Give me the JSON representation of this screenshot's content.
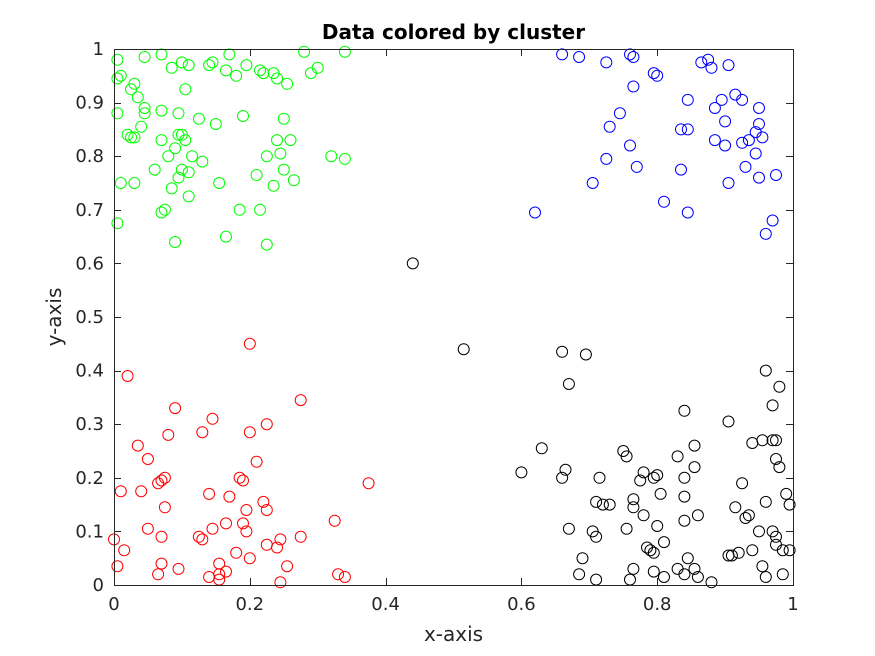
{
  "chart_data": {
    "type": "scatter",
    "title": "Data colored by cluster",
    "xlabel": "x-axis",
    "ylabel": "y-axis",
    "xlim": [
      0,
      1
    ],
    "ylim": [
      0,
      1
    ],
    "xticks": [
      "0",
      "0.2",
      "0.4",
      "0.6",
      "0.8",
      "1"
    ],
    "yticks": [
      "0",
      "0.1",
      "0.2",
      "0.3",
      "0.4",
      "0.5",
      "0.6",
      "0.7",
      "0.8",
      "0.9",
      "1"
    ],
    "grid": false,
    "legend": "none",
    "marker": "circle-open",
    "series": [
      {
        "color": "#00ff00",
        "points": [
          [
            0.005,
            0.98
          ],
          [
            0.01,
            0.95
          ],
          [
            0.005,
            0.945
          ],
          [
            0.025,
            0.925
          ],
          [
            0.03,
            0.935
          ],
          [
            0.035,
            0.91
          ],
          [
            0.045,
            0.89
          ],
          [
            0.005,
            0.88
          ],
          [
            0.02,
            0.84
          ],
          [
            0.025,
            0.835
          ],
          [
            0.03,
            0.835
          ],
          [
            0.04,
            0.855
          ],
          [
            0.045,
            0.88
          ],
          [
            0.01,
            0.75
          ],
          [
            0.03,
            0.75
          ],
          [
            0.005,
            0.675
          ],
          [
            0.045,
            0.985
          ],
          [
            0.07,
            0.99
          ],
          [
            0.085,
            0.965
          ],
          [
            0.1,
            0.975
          ],
          [
            0.11,
            0.97
          ],
          [
            0.105,
            0.925
          ],
          [
            0.07,
            0.885
          ],
          [
            0.095,
            0.88
          ],
          [
            0.07,
            0.83
          ],
          [
            0.08,
            0.8
          ],
          [
            0.09,
            0.815
          ],
          [
            0.095,
            0.84
          ],
          [
            0.1,
            0.84
          ],
          [
            0.105,
            0.83
          ],
          [
            0.115,
            0.8
          ],
          [
            0.06,
            0.775
          ],
          [
            0.1,
            0.775
          ],
          [
            0.11,
            0.77
          ],
          [
            0.095,
            0.76
          ],
          [
            0.085,
            0.74
          ],
          [
            0.11,
            0.725
          ],
          [
            0.075,
            0.7
          ],
          [
            0.07,
            0.695
          ],
          [
            0.09,
            0.64
          ],
          [
            0.14,
            0.97
          ],
          [
            0.145,
            0.975
          ],
          [
            0.165,
            0.96
          ],
          [
            0.17,
            0.99
          ],
          [
            0.18,
            0.95
          ],
          [
            0.195,
            0.97
          ],
          [
            0.215,
            0.96
          ],
          [
            0.22,
            0.955
          ],
          [
            0.235,
            0.955
          ],
          [
            0.24,
            0.945
          ],
          [
            0.255,
            0.935
          ],
          [
            0.28,
            0.995
          ],
          [
            0.29,
            0.955
          ],
          [
            0.3,
            0.965
          ],
          [
            0.34,
            0.995
          ],
          [
            0.125,
            0.87
          ],
          [
            0.15,
            0.86
          ],
          [
            0.19,
            0.875
          ],
          [
            0.25,
            0.87
          ],
          [
            0.26,
            0.83
          ],
          [
            0.24,
            0.83
          ],
          [
            0.225,
            0.8
          ],
          [
            0.245,
            0.805
          ],
          [
            0.32,
            0.8
          ],
          [
            0.34,
            0.795
          ],
          [
            0.13,
            0.79
          ],
          [
            0.155,
            0.75
          ],
          [
            0.21,
            0.765
          ],
          [
            0.25,
            0.775
          ],
          [
            0.265,
            0.755
          ],
          [
            0.235,
            0.745
          ],
          [
            0.185,
            0.7
          ],
          [
            0.215,
            0.7
          ],
          [
            0.165,
            0.65
          ],
          [
            0.225,
            0.635
          ]
        ]
      },
      {
        "color": "#0000ff",
        "points": [
          [
            0.66,
            0.99
          ],
          [
            0.685,
            0.985
          ],
          [
            0.76,
            0.99
          ],
          [
            0.765,
            0.985
          ],
          [
            0.725,
            0.975
          ],
          [
            0.8,
            0.95
          ],
          [
            0.795,
            0.955
          ],
          [
            0.865,
            0.975
          ],
          [
            0.875,
            0.98
          ],
          [
            0.88,
            0.965
          ],
          [
            0.905,
            0.97
          ],
          [
            0.765,
            0.93
          ],
          [
            0.845,
            0.905
          ],
          [
            0.895,
            0.905
          ],
          [
            0.915,
            0.915
          ],
          [
            0.925,
            0.905
          ],
          [
            0.885,
            0.89
          ],
          [
            0.95,
            0.89
          ],
          [
            0.745,
            0.88
          ],
          [
            0.73,
            0.855
          ],
          [
            0.835,
            0.85
          ],
          [
            0.845,
            0.85
          ],
          [
            0.9,
            0.865
          ],
          [
            0.95,
            0.86
          ],
          [
            0.945,
            0.845
          ],
          [
            0.955,
            0.835
          ],
          [
            0.935,
            0.83
          ],
          [
            0.925,
            0.825
          ],
          [
            0.885,
            0.83
          ],
          [
            0.9,
            0.82
          ],
          [
            0.76,
            0.82
          ],
          [
            0.725,
            0.795
          ],
          [
            0.77,
            0.78
          ],
          [
            0.835,
            0.775
          ],
          [
            0.93,
            0.78
          ],
          [
            0.945,
            0.805
          ],
          [
            0.95,
            0.76
          ],
          [
            0.975,
            0.765
          ],
          [
            0.705,
            0.75
          ],
          [
            0.905,
            0.75
          ],
          [
            0.81,
            0.715
          ],
          [
            0.845,
            0.695
          ],
          [
            0.97,
            0.68
          ],
          [
            0.96,
            0.655
          ],
          [
            0.62,
            0.695
          ]
        ]
      },
      {
        "color": "#ff0000",
        "points": [
          [
            0.2,
            0.45
          ],
          [
            0.02,
            0.39
          ],
          [
            0.275,
            0.345
          ],
          [
            0.09,
            0.33
          ],
          [
            0.145,
            0.31
          ],
          [
            0.225,
            0.3
          ],
          [
            0.08,
            0.28
          ],
          [
            0.13,
            0.285
          ],
          [
            0.2,
            0.285
          ],
          [
            0.035,
            0.26
          ],
          [
            0.05,
            0.235
          ],
          [
            0.21,
            0.23
          ],
          [
            0.075,
            0.2
          ],
          [
            0.07,
            0.195
          ],
          [
            0.065,
            0.19
          ],
          [
            0.185,
            0.2
          ],
          [
            0.19,
            0.195
          ],
          [
            0.375,
            0.19
          ],
          [
            0.04,
            0.175
          ],
          [
            0.01,
            0.175
          ],
          [
            0.14,
            0.17
          ],
          [
            0.17,
            0.165
          ],
          [
            0.22,
            0.155
          ],
          [
            0.225,
            0.14
          ],
          [
            0.075,
            0.145
          ],
          [
            0.195,
            0.14
          ],
          [
            0.05,
            0.105
          ],
          [
            0.07,
            0.09
          ],
          [
            0.125,
            0.09
          ],
          [
            0.13,
            0.085
          ],
          [
            0.145,
            0.105
          ],
          [
            0.165,
            0.115
          ],
          [
            0.19,
            0.115
          ],
          [
            0.195,
            0.1
          ],
          [
            0.245,
            0.085
          ],
          [
            0.275,
            0.09
          ],
          [
            0.325,
            0.12
          ],
          [
            0.0,
            0.085
          ],
          [
            0.015,
            0.065
          ],
          [
            0.005,
            0.035
          ],
          [
            0.07,
            0.04
          ],
          [
            0.065,
            0.02
          ],
          [
            0.095,
            0.03
          ],
          [
            0.155,
            0.04
          ],
          [
            0.18,
            0.06
          ],
          [
            0.2,
            0.05
          ],
          [
            0.225,
            0.075
          ],
          [
            0.24,
            0.07
          ],
          [
            0.255,
            0.035
          ],
          [
            0.14,
            0.015
          ],
          [
            0.155,
            0.01
          ],
          [
            0.155,
            0.02
          ],
          [
            0.165,
            0.025
          ],
          [
            0.245,
            0.005
          ],
          [
            0.33,
            0.02
          ],
          [
            0.34,
            0.015
          ]
        ]
      },
      {
        "color": "#000000",
        "points": [
          [
            0.44,
            0.6
          ],
          [
            0.515,
            0.44
          ],
          [
            0.66,
            0.435
          ],
          [
            0.695,
            0.43
          ],
          [
            0.67,
            0.375
          ],
          [
            0.96,
            0.4
          ],
          [
            0.98,
            0.37
          ],
          [
            0.97,
            0.335
          ],
          [
            0.84,
            0.325
          ],
          [
            0.905,
            0.305
          ],
          [
            0.63,
            0.255
          ],
          [
            0.855,
            0.26
          ],
          [
            0.94,
            0.265
          ],
          [
            0.955,
            0.27
          ],
          [
            0.97,
            0.27
          ],
          [
            0.975,
            0.27
          ],
          [
            0.75,
            0.25
          ],
          [
            0.755,
            0.24
          ],
          [
            0.83,
            0.24
          ],
          [
            0.975,
            0.235
          ],
          [
            0.98,
            0.22
          ],
          [
            0.6,
            0.21
          ],
          [
            0.665,
            0.215
          ],
          [
            0.66,
            0.2
          ],
          [
            0.715,
            0.2
          ],
          [
            0.78,
            0.21
          ],
          [
            0.775,
            0.195
          ],
          [
            0.795,
            0.2
          ],
          [
            0.8,
            0.205
          ],
          [
            0.84,
            0.2
          ],
          [
            0.855,
            0.22
          ],
          [
            0.925,
            0.19
          ],
          [
            0.765,
            0.16
          ],
          [
            0.805,
            0.17
          ],
          [
            0.84,
            0.165
          ],
          [
            0.99,
            0.17
          ],
          [
            0.71,
            0.155
          ],
          [
            0.72,
            0.15
          ],
          [
            0.73,
            0.15
          ],
          [
            0.765,
            0.145
          ],
          [
            0.915,
            0.145
          ],
          [
            0.935,
            0.13
          ],
          [
            0.95,
            0.1
          ],
          [
            0.96,
            0.155
          ],
          [
            0.995,
            0.15
          ],
          [
            0.67,
            0.105
          ],
          [
            0.705,
            0.1
          ],
          [
            0.71,
            0.09
          ],
          [
            0.755,
            0.105
          ],
          [
            0.78,
            0.13
          ],
          [
            0.8,
            0.11
          ],
          [
            0.84,
            0.12
          ],
          [
            0.86,
            0.13
          ],
          [
            0.93,
            0.125
          ],
          [
            0.97,
            0.1
          ],
          [
            0.975,
            0.09
          ],
          [
            0.69,
            0.05
          ],
          [
            0.785,
            0.07
          ],
          [
            0.79,
            0.065
          ],
          [
            0.795,
            0.06
          ],
          [
            0.81,
            0.08
          ],
          [
            0.845,
            0.05
          ],
          [
            0.905,
            0.055
          ],
          [
            0.91,
            0.055
          ],
          [
            0.92,
            0.06
          ],
          [
            0.94,
            0.065
          ],
          [
            0.955,
            0.035
          ],
          [
            0.975,
            0.075
          ],
          [
            0.985,
            0.065
          ],
          [
            0.995,
            0.065
          ],
          [
            0.685,
            0.02
          ],
          [
            0.71,
            0.01
          ],
          [
            0.76,
            0.01
          ],
          [
            0.765,
            0.03
          ],
          [
            0.795,
            0.025
          ],
          [
            0.81,
            0.015
          ],
          [
            0.83,
            0.03
          ],
          [
            0.84,
            0.02
          ],
          [
            0.855,
            0.03
          ],
          [
            0.86,
            0.015
          ],
          [
            0.88,
            0.005
          ],
          [
            0.96,
            0.015
          ],
          [
            0.985,
            0.02
          ]
        ]
      }
    ]
  }
}
